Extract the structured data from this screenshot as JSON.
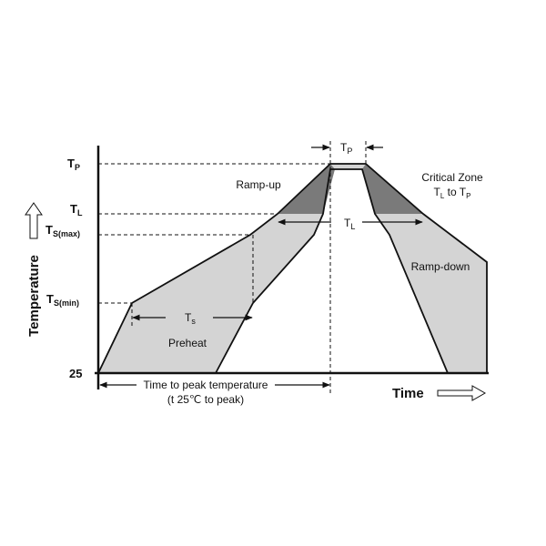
{
  "y_axis": {
    "title": "Temperature",
    "ticks": {
      "tp": {
        "main": "T",
        "sub": "P"
      },
      "tl": {
        "main": "T",
        "sub": "L"
      },
      "tsmax": {
        "main": "T",
        "sub": "S(max)"
      },
      "tsmin": {
        "main": "T",
        "sub": "S(min)"
      },
      "t25": {
        "main": "25"
      }
    }
  },
  "x_axis": {
    "title": "Time"
  },
  "regions": {
    "preheat": "Preheat",
    "ramp_up": "Ramp-up",
    "ramp_down": "Ramp-down",
    "critical_zone": {
      "line1": "Critical Zone",
      "line2": {
        "a": "T",
        "a_sub": "L",
        "mid": " to T",
        "b_sub": "P"
      }
    }
  },
  "dimensions": {
    "ts": {
      "main": "T",
      "sub": "s"
    },
    "tl": {
      "main": "T",
      "sub": "L"
    },
    "tp": {
      "main": "T",
      "sub": "P"
    },
    "time_to_peak": {
      "line1": "Time to peak temperature",
      "line2": "(t 25℃ to peak)"
    }
  },
  "colors": {
    "light_fill": "#d4d4d4",
    "dark_fill": "#7a7a7a",
    "line": "#111111"
  },
  "icons": [
    "up-arrow-icon",
    "right-arrow-icon"
  ]
}
